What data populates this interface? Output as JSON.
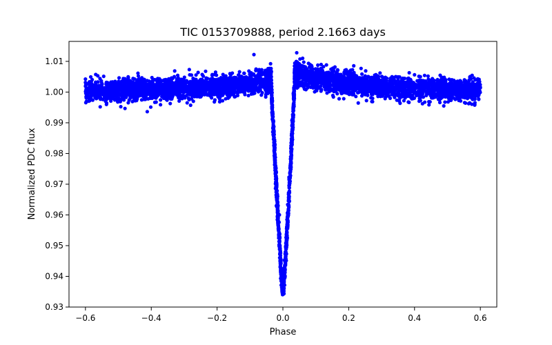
{
  "chart_data": {
    "type": "scatter",
    "title": "TIC 0153709888, period 2.1663 days",
    "xlabel": "Phase",
    "ylabel": "Normalized PDC flux",
    "xlim": [
      -0.65,
      0.65
    ],
    "ylim": [
      0.93,
      1.0165
    ],
    "xticks": [
      -0.6,
      -0.4,
      -0.2,
      0.0,
      0.2,
      0.4,
      0.6
    ],
    "xtick_labels": [
      "−0.6",
      "−0.4",
      "−0.2",
      "0.0",
      "0.2",
      "0.4",
      "0.6"
    ],
    "yticks": [
      0.93,
      0.94,
      0.95,
      0.96,
      0.97,
      0.98,
      0.99,
      1.0,
      1.01
    ],
    "ytick_labels": [
      "0.93",
      "0.94",
      "0.95",
      "0.96",
      "0.97",
      "0.98",
      "0.99",
      "1.00",
      "1.01"
    ],
    "grid": false,
    "series": [
      {
        "name": "flux",
        "color": "#0000ff",
        "marker": "circle",
        "profile": {
          "baseline": 1.0,
          "scatter_sigma": 0.0018,
          "phase_range": [
            -0.6,
            0.6
          ],
          "transit_center": 0.0,
          "transit_depth_min": 0.934,
          "transit_half_width": 0.035,
          "ingress_bump_peak": 1.004,
          "ingress_bump_phase": -0.07,
          "egress_bump_peak": 1.006,
          "egress_bump_phase": 0.07,
          "outlier_max": 1.013
        },
        "representative_points": [
          {
            "x": -0.6,
            "y": 1.0
          },
          {
            "x": -0.4,
            "y": 1.0
          },
          {
            "x": -0.2,
            "y": 1.001
          },
          {
            "x": -0.1,
            "y": 1.003
          },
          {
            "x": -0.05,
            "y": 1.004
          },
          {
            "x": -0.03,
            "y": 0.995
          },
          {
            "x": -0.02,
            "y": 0.975
          },
          {
            "x": -0.01,
            "y": 0.955
          },
          {
            "x": 0.0,
            "y": 0.935
          },
          {
            "x": 0.01,
            "y": 0.955
          },
          {
            "x": 0.02,
            "y": 0.975
          },
          {
            "x": 0.03,
            "y": 0.995
          },
          {
            "x": 0.05,
            "y": 1.005
          },
          {
            "x": 0.1,
            "y": 1.004
          },
          {
            "x": 0.2,
            "y": 1.002
          },
          {
            "x": 0.4,
            "y": 1.001
          },
          {
            "x": 0.6,
            "y": 1.0
          }
        ]
      }
    ]
  }
}
